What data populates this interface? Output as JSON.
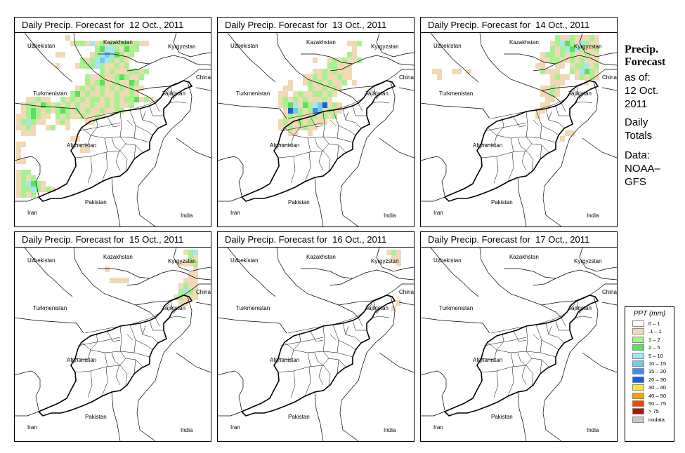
{
  "title_prefix": "Daily Precip. Forecast for",
  "panels": [
    {
      "date": "12 Oct., 2011"
    },
    {
      "date": "13 Oct., 2011"
    },
    {
      "date": "14 Oct., 2011"
    },
    {
      "date": "15 Oct., 2011"
    },
    {
      "date": "16 Oct., 2011"
    },
    {
      "date": "17 Oct., 2011"
    }
  ],
  "map_labels": {
    "kazakhstan": "Kazakhstan",
    "uzbekistan": "Uzbekistan",
    "kyrgyzstan": "Kyrgyzstan",
    "china": "China",
    "turkmenistan": "Turkmenistan",
    "tajikistan": "Tajikistan",
    "afghanistan": "Afghanistan",
    "pakistan": "Pakistan",
    "iran": "Iran",
    "india": "India"
  },
  "side_info": {
    "heading1": "Precip.",
    "heading2": "Forecast",
    "as_of": "as of:",
    "date1": "12 Oct.",
    "date2": "2011",
    "totals1": "Daily",
    "totals2": "Totals",
    "data_label": "Data:",
    "source1": "NOAA–",
    "source2": "GFS"
  },
  "legend": {
    "title": "PPT (mm)",
    "classes": [
      {
        "label": "0 – 1",
        "color": "#ffffff"
      },
      {
        "label": ".1 – 1",
        "color": "#f0d9b5"
      },
      {
        "label": "1 – 2",
        "color": "#a6f28f"
      },
      {
        "label": "2 – 5",
        "color": "#5ae05a"
      },
      {
        "label": "5 – 10",
        "color": "#a9e4f5"
      },
      {
        "label": "10 – 15",
        "color": "#72c8f0"
      },
      {
        "label": "15 – 20",
        "color": "#3d8df0"
      },
      {
        "label": "20 – 30",
        "color": "#1a5fd8"
      },
      {
        "label": "30 – 40",
        "color": "#f5e43a"
      },
      {
        "label": "40 – 50",
        "color": "#f5a300"
      },
      {
        "label": "50 – 75",
        "color": "#f04a00"
      },
      {
        "label": "> 75",
        "color": "#a31a1a"
      },
      {
        "label": "nodata",
        "color": "#c8c8c8"
      }
    ]
  }
}
